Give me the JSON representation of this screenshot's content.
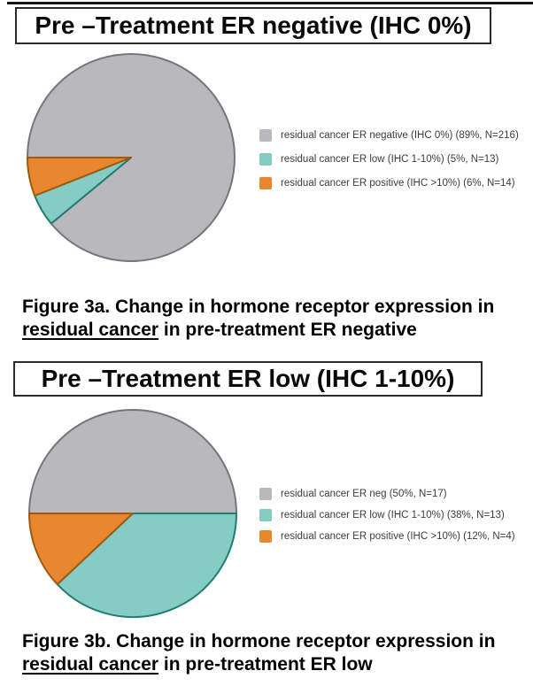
{
  "page": {
    "background": "#ffffff"
  },
  "figures": [
    {
      "title": "Pre –Treatment ER negative (IHC 0%)",
      "caption": {
        "prefix": "Figure 3a. Change in hormone receptor expression in ",
        "underlined": "residual cancer",
        "suffix": " in pre-treatment ER negative"
      }
    },
    {
      "title": "Pre –Treatment ER low (IHC 1-10%)",
      "caption": {
        "prefix": "Figure 3b. Change in hormone receptor expression in ",
        "underlined": "residual cancer",
        "suffix": " in pre-treatment ER low"
      }
    }
  ],
  "chart_data": [
    {
      "type": "pie",
      "title": "Pre –Treatment ER negative (IHC 0%)",
      "start_angle_deg": 180,
      "direction": "clockwise",
      "legend_position": "right",
      "slices": [
        {
          "key": "er-negative",
          "label": "residual cancer ER negative (IHC 0%) (89%, N=216)",
          "value_pct": 89,
          "n": 216,
          "color": "#b9b9bd",
          "stroke": "#76767a"
        },
        {
          "key": "er-low",
          "label": "residual cancer ER low (IHC 1-10%) (5%, N=13)",
          "value_pct": 5,
          "n": 13,
          "color": "#85ccc5",
          "stroke": "#217c72"
        },
        {
          "key": "er-positive",
          "label": "residual cancer ER positive (IHC >10%) (6%, N=14)",
          "value_pct": 6,
          "n": 14,
          "color": "#e8872f",
          "stroke": "#a05a10"
        }
      ]
    },
    {
      "type": "pie",
      "title": "Pre –Treatment ER low (IHC 1-10%)",
      "start_angle_deg": 180,
      "direction": "clockwise",
      "legend_position": "right",
      "slices": [
        {
          "key": "er-negative",
          "label": "residual cancer ER neg (50%, N=17)",
          "value_pct": 50,
          "n": 17,
          "color": "#b9b9bd",
          "stroke": "#76767a"
        },
        {
          "key": "er-low",
          "label": "residual cancer ER low (IHC 1-10%) (38%, N=13)",
          "value_pct": 38,
          "n": 13,
          "color": "#85ccc5",
          "stroke": "#217c72"
        },
        {
          "key": "er-positive",
          "label": "residual cancer ER positive (IHC >10%) (12%, N=4)",
          "value_pct": 12,
          "n": 4,
          "color": "#e8872f",
          "stroke": "#a05a10"
        }
      ]
    }
  ]
}
